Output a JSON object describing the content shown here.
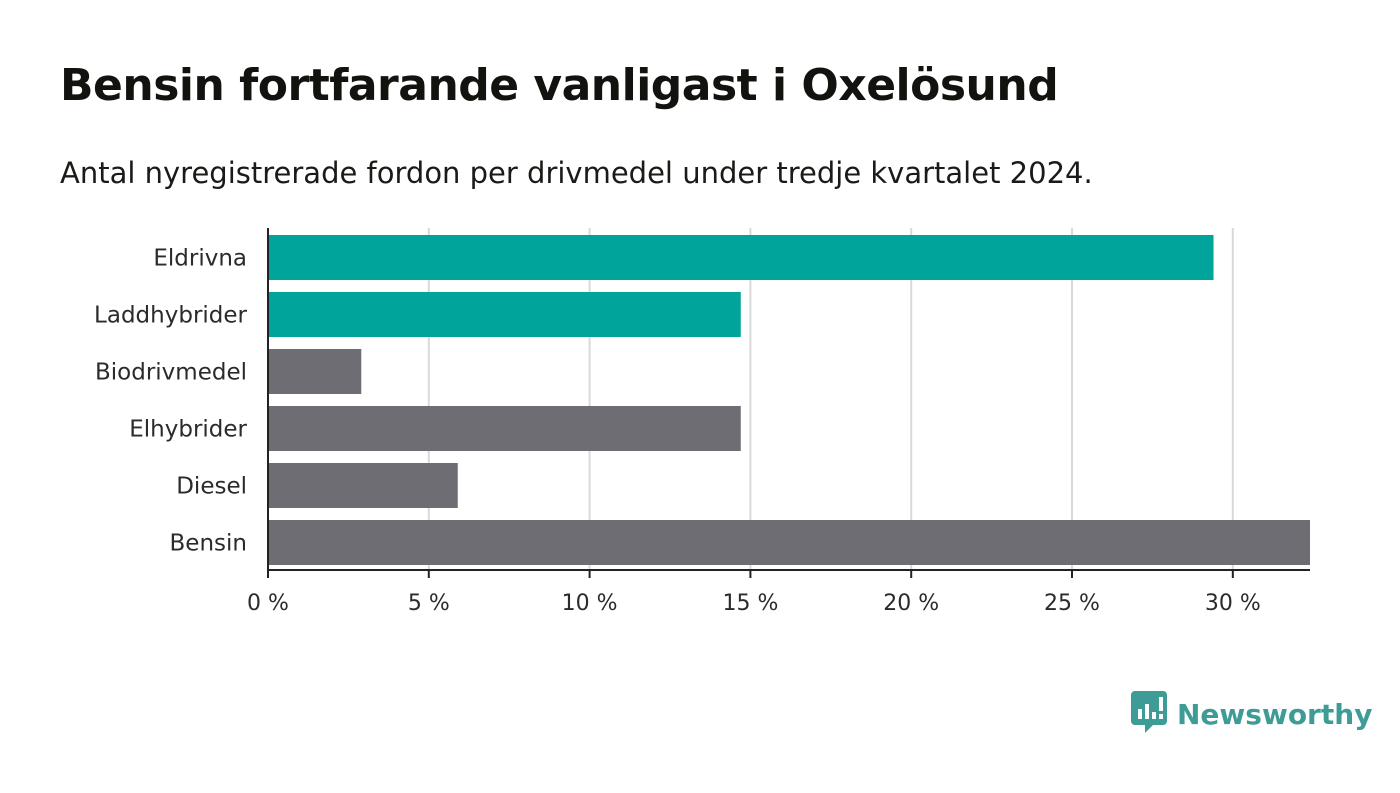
{
  "header": {
    "title": "Bensin fortfarande vanligast i Oxelösund",
    "subtitle": "Antal nyregistrerade fordon per drivmedel under tredje kvartalet 2024."
  },
  "brand": {
    "name": "Newsworthy",
    "color": "#3e9c96",
    "icon": "bar-chart-speech-bubble-icon"
  },
  "colors": {
    "highlight": "#00a49a",
    "default": "#6e6d73",
    "grid": "#d9d9d9",
    "axis": "#222222"
  },
  "chart_data": {
    "type": "bar",
    "orientation": "horizontal",
    "categories": [
      "Eldrivna",
      "Laddhybrider",
      "Biodrivmedel",
      "Elhybrider",
      "Diesel",
      "Bensin"
    ],
    "values": [
      29.4,
      14.7,
      2.9,
      14.7,
      5.9,
      32.4
    ],
    "highlighted": [
      "Eldrivna",
      "Laddhybrider"
    ],
    "xlim": [
      0,
      32.4
    ],
    "xticks": [
      0,
      5,
      10,
      15,
      20,
      25,
      30
    ],
    "tick_labels": [
      "0 %",
      "5 %",
      "10 %",
      "15 %",
      "20 %",
      "25 %",
      "30 %"
    ],
    "grid": "vertical"
  }
}
